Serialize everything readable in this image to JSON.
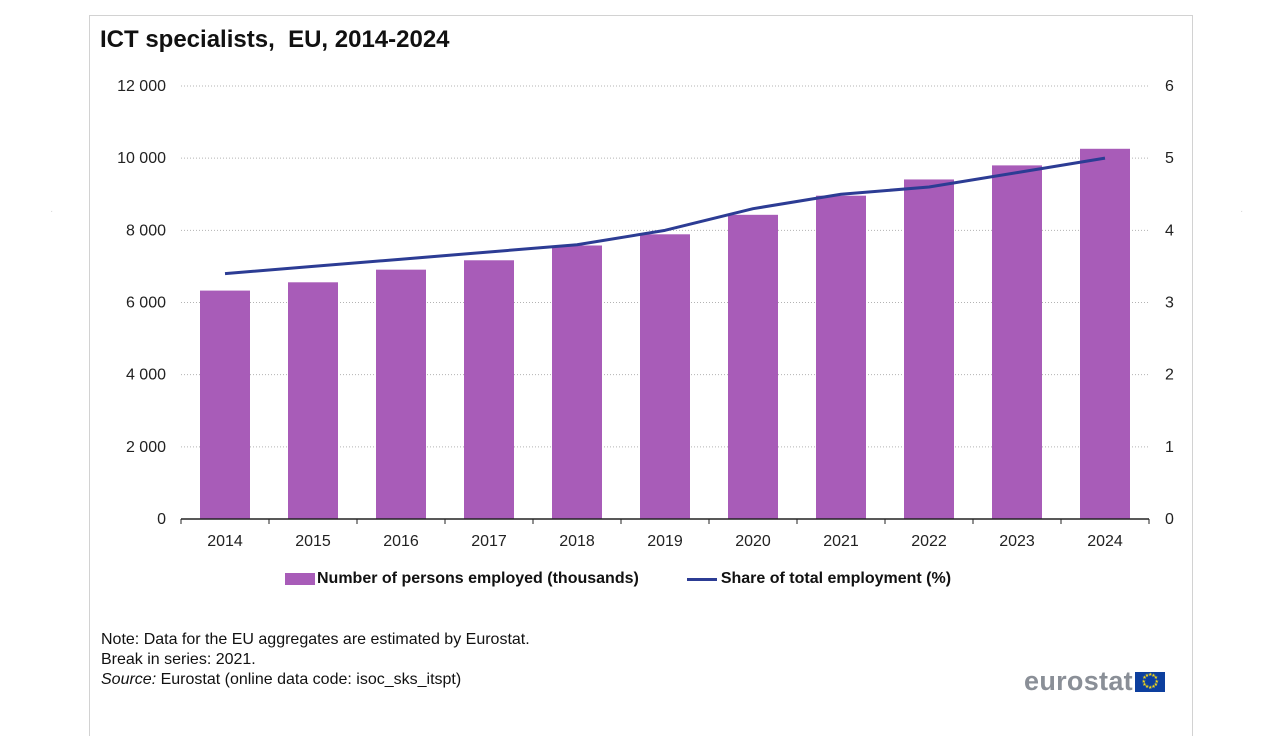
{
  "page": {
    "title": "ICT specialists,  EU, 2014-2024",
    "note": "Note: Data for the EU aggregates are estimated by Eurostat.",
    "break_note": "Break in series: 2021.",
    "source_label": "Source:",
    "source_text": " Eurostat (online data code: isoc_sks_itspt)",
    "logo": "eurostat",
    "colors": {
      "bar": "#a85cb8",
      "line": "#2c3c94",
      "grid": "#b3b3b3"
    }
  },
  "chart_data": {
    "type": "bar",
    "title": "ICT specialists,  EU, 2014-2024",
    "categories": [
      "2014",
      "2015",
      "2016",
      "2017",
      "2018",
      "2019",
      "2020",
      "2021",
      "2022",
      "2023",
      "2024"
    ],
    "series": [
      {
        "name": "Number of persons employed (thousands)",
        "type": "bar",
        "axis": "left",
        "values": [
          6330,
          6560,
          6910,
          7170,
          7580,
          7890,
          8430,
          8960,
          9410,
          9800,
          10260
        ]
      },
      {
        "name": "Share of total employment (%)",
        "type": "line",
        "axis": "right",
        "values": [
          3.4,
          3.5,
          3.6,
          3.7,
          3.8,
          4.0,
          4.3,
          4.5,
          4.6,
          4.8,
          5.0
        ]
      }
    ],
    "y_left": {
      "min": 0,
      "max": 12000,
      "ticks": [
        0,
        2000,
        4000,
        6000,
        8000,
        10000,
        12000
      ],
      "tick_labels": [
        "0",
        "2 000",
        "4 000",
        "6 000",
        "8 000",
        "10 000",
        "12 000"
      ]
    },
    "y_right": {
      "min": 0,
      "max": 6,
      "ticks": [
        0,
        1,
        2,
        3,
        4,
        5,
        6
      ],
      "tick_labels": [
        "0",
        "1",
        "2",
        "3",
        "4",
        "5",
        "6"
      ]
    },
    "grid": true,
    "legend_position": "bottom"
  }
}
